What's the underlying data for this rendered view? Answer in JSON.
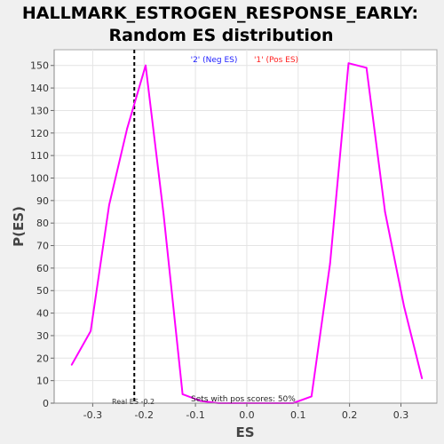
{
  "chart_data": {
    "type": "line",
    "title": "HALLMARK_ESTROGEN_RESPONSE_EARLY:",
    "subtitle": "Random ES distribution",
    "xlabel": "ES",
    "ylabel": "P(ES)",
    "xlim": [
      -0.375,
      0.37
    ],
    "ylim": [
      0,
      157
    ],
    "grid": true,
    "legend_placement": "top-center",
    "colors": {
      "curve": "#ff00ff",
      "plot_bg": "#ffffff",
      "page_bg": "#f0f0f0",
      "grid": "#e4e4e4",
      "neg_label": "#2020ff",
      "pos_label": "#ff2020",
      "real_es_line": "#000000"
    },
    "legend": [
      {
        "label": "'2' (Neg ES)",
        "color": "#2020ff"
      },
      {
        "label": "'1' (Pos ES)",
        "color": "#ff2020"
      }
    ],
    "x_ticks": [
      -0.3,
      -0.2,
      -0.1,
      0.0,
      0.1,
      0.2,
      0.3
    ],
    "x_tick_labels": [
      "-0.3",
      "-0.2",
      "-0.1",
      "0.0",
      "0.1",
      "0.2",
      "0.3"
    ],
    "y_ticks": [
      0,
      10,
      20,
      30,
      40,
      50,
      60,
      70,
      80,
      90,
      100,
      110,
      120,
      130,
      140,
      150
    ],
    "y_tick_labels": [
      "0",
      "10",
      "20",
      "30",
      "40",
      "50",
      "60",
      "70",
      "80",
      "90",
      "100",
      "110",
      "120",
      "130",
      "140",
      "150"
    ],
    "series": [
      {
        "x": [
          -0.341,
          -0.304,
          -0.268,
          -0.233,
          -0.197,
          -0.162,
          -0.125,
          -0.09,
          -0.055,
          -0.018,
          0.018,
          0.055,
          0.09,
          0.126,
          0.162,
          0.198,
          0.233,
          0.269,
          0.306,
          0.341
        ],
        "values": [
          17,
          32,
          88,
          122,
          150,
          84,
          4,
          1,
          0,
          0,
          0,
          0,
          0,
          3,
          62,
          151,
          149,
          85,
          43,
          11
        ]
      }
    ],
    "real_es": {
      "x": -0.219,
      "label": "Real ES -0.2"
    },
    "footer_label": "Sets with pos scores: 50%"
  }
}
